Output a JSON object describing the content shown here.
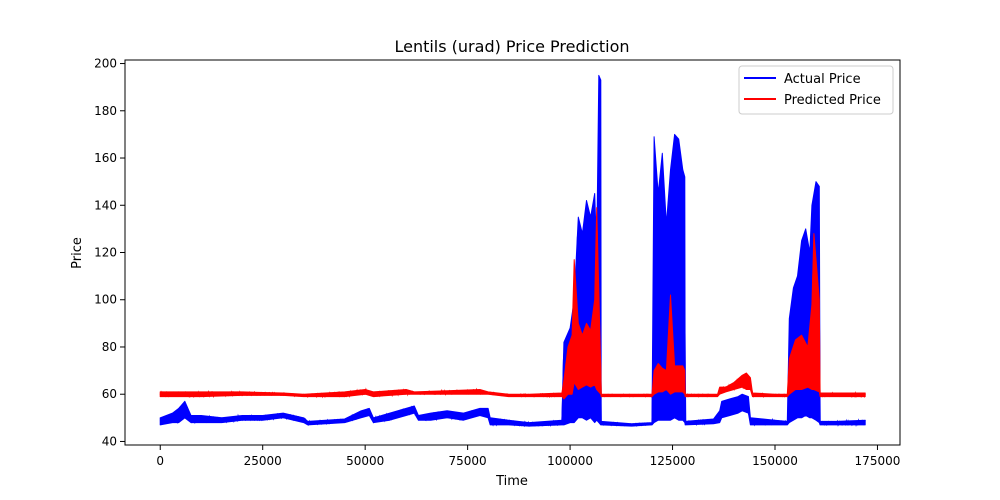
{
  "chart_data": {
    "type": "line",
    "title": "Lentils (urad) Price Prediction",
    "xlabel": "Time",
    "ylabel": "Price",
    "xlim": [
      -8600,
      180500
    ],
    "ylim": [
      38.5,
      201.5
    ],
    "xticks": [
      0,
      25000,
      50000,
      75000,
      100000,
      125000,
      150000,
      175000
    ],
    "xtick_labels": [
      "0",
      "25000",
      "50000",
      "75000",
      "100000",
      "125000",
      "150000",
      "175000"
    ],
    "yticks": [
      40,
      60,
      80,
      100,
      120,
      140,
      160,
      180,
      200
    ],
    "ytick_labels": [
      "40",
      "60",
      "80",
      "100",
      "120",
      "140",
      "160",
      "180",
      "200"
    ],
    "grid": false,
    "legend_position": "top-right",
    "series": [
      {
        "name": "Actual Price",
        "color": "#0000ff",
        "bands": [
          [
            0,
            47,
            50
          ],
          [
            3000,
            48,
            52
          ],
          [
            4500,
            48,
            54
          ],
          [
            6000,
            50,
            57
          ],
          [
            7500,
            48,
            51
          ],
          [
            10000,
            48,
            51
          ],
          [
            15000,
            48,
            50
          ],
          [
            20000,
            49,
            51
          ],
          [
            25000,
            49,
            51
          ],
          [
            30000,
            50,
            52
          ],
          [
            35000,
            48,
            50
          ],
          [
            36000,
            47,
            48.5
          ],
          [
            45000,
            48,
            49.5
          ],
          [
            49000,
            50,
            53
          ],
          [
            51000,
            51,
            54
          ],
          [
            52000,
            48,
            50
          ],
          [
            56000,
            49,
            52
          ],
          [
            60000,
            51,
            54
          ],
          [
            62000,
            52,
            55
          ],
          [
            63000,
            49,
            51
          ],
          [
            66000,
            49,
            52
          ],
          [
            70000,
            50,
            53
          ],
          [
            74000,
            49,
            52
          ],
          [
            78000,
            51,
            54
          ],
          [
            80000,
            50,
            54
          ],
          [
            80500,
            47,
            50
          ],
          [
            85000,
            47,
            49
          ],
          [
            90000,
            46.5,
            48
          ],
          [
            98000,
            47,
            49
          ],
          [
            98500,
            47,
            82
          ],
          [
            100000,
            48,
            88
          ],
          [
            101000,
            48,
            100
          ],
          [
            102000,
            50,
            135
          ],
          [
            103000,
            50,
            128
          ],
          [
            104000,
            49,
            142
          ],
          [
            105000,
            50,
            135
          ],
          [
            106000,
            48,
            145
          ],
          [
            106500,
            49,
            120
          ],
          [
            107000,
            48,
            195
          ],
          [
            107500,
            47,
            193
          ],
          [
            107600,
            47,
            48.5
          ],
          [
            115000,
            46.5,
            47.5
          ],
          [
            120000,
            47,
            48
          ],
          [
            120500,
            48,
            169
          ],
          [
            121500,
            49,
            145
          ],
          [
            122500,
            49,
            162
          ],
          [
            123500,
            49,
            132
          ],
          [
            124500,
            49,
            155
          ],
          [
            125500,
            50,
            170
          ],
          [
            126500,
            49,
            168
          ],
          [
            127500,
            49,
            155
          ],
          [
            128000,
            48,
            152
          ],
          [
            128100,
            47,
            48.5
          ],
          [
            135000,
            47.5,
            49.5
          ],
          [
            136500,
            48,
            53
          ],
          [
            137000,
            50,
            57
          ],
          [
            139000,
            51,
            58
          ],
          [
            141000,
            52,
            59
          ],
          [
            142000,
            53,
            60
          ],
          [
            143500,
            52,
            59
          ],
          [
            144000,
            47,
            50
          ],
          [
            150000,
            47,
            49
          ],
          [
            153000,
            47,
            48.5
          ],
          [
            153500,
            48,
            92
          ],
          [
            154500,
            49,
            105
          ],
          [
            155500,
            50,
            110
          ],
          [
            156500,
            50,
            125
          ],
          [
            157500,
            51,
            130
          ],
          [
            158500,
            50,
            120
          ],
          [
            159000,
            50,
            140
          ],
          [
            160000,
            49,
            150
          ],
          [
            160800,
            48,
            148
          ],
          [
            161000,
            47,
            48.5
          ],
          [
            165000,
            47,
            48.5
          ],
          [
            172000,
            47,
            49
          ]
        ]
      },
      {
        "name": "Predicted Price",
        "color": "#ff0000",
        "bands": [
          [
            0,
            59,
            61
          ],
          [
            10000,
            59,
            61
          ],
          [
            20000,
            59.5,
            61
          ],
          [
            30000,
            59.5,
            60.5
          ],
          [
            35000,
            59,
            60
          ],
          [
            45000,
            59,
            61
          ],
          [
            50000,
            60,
            62
          ],
          [
            52000,
            59,
            61
          ],
          [
            60000,
            60,
            62
          ],
          [
            62000,
            60,
            61
          ],
          [
            70000,
            60,
            61.5
          ],
          [
            78000,
            60,
            62
          ],
          [
            80000,
            60,
            61
          ],
          [
            85000,
            59,
            60
          ],
          [
            90000,
            59,
            60
          ],
          [
            98000,
            59,
            60.5
          ],
          [
            98500,
            58,
            66
          ],
          [
            99500,
            60,
            80
          ],
          [
            100500,
            60,
            85
          ],
          [
            101000,
            65,
            117
          ],
          [
            102000,
            62,
            90
          ],
          [
            103000,
            63,
            85
          ],
          [
            104000,
            64,
            90
          ],
          [
            105000,
            63,
            87
          ],
          [
            106000,
            64,
            100
          ],
          [
            106500,
            62,
            139
          ],
          [
            107500,
            60,
            70
          ],
          [
            107600,
            59,
            60
          ],
          [
            115000,
            59,
            60
          ],
          [
            120000,
            59,
            60
          ],
          [
            120500,
            60,
            70
          ],
          [
            121500,
            61,
            73
          ],
          [
            122500,
            61,
            71
          ],
          [
            123500,
            62,
            70
          ],
          [
            124500,
            60,
            102
          ],
          [
            125500,
            61,
            72
          ],
          [
            127500,
            61,
            72
          ],
          [
            128000,
            60,
            70
          ],
          [
            128100,
            59,
            60
          ],
          [
            136000,
            59,
            60
          ],
          [
            136500,
            60,
            63
          ],
          [
            138000,
            61,
            63
          ],
          [
            140000,
            62,
            65
          ],
          [
            142000,
            63,
            68
          ],
          [
            143000,
            62,
            69
          ],
          [
            144000,
            62,
            67
          ],
          [
            144500,
            59,
            60.5
          ],
          [
            150000,
            59,
            60
          ],
          [
            153000,
            59,
            60
          ],
          [
            153500,
            60,
            75
          ],
          [
            155000,
            62,
            83
          ],
          [
            156500,
            62,
            85
          ],
          [
            158000,
            63,
            80
          ],
          [
            159000,
            62,
            98
          ],
          [
            159500,
            62,
            128
          ],
          [
            160800,
            61,
            100
          ],
          [
            161000,
            59,
            60.5
          ],
          [
            165000,
            59,
            60.5
          ],
          [
            172000,
            59,
            60.5
          ]
        ]
      }
    ]
  }
}
